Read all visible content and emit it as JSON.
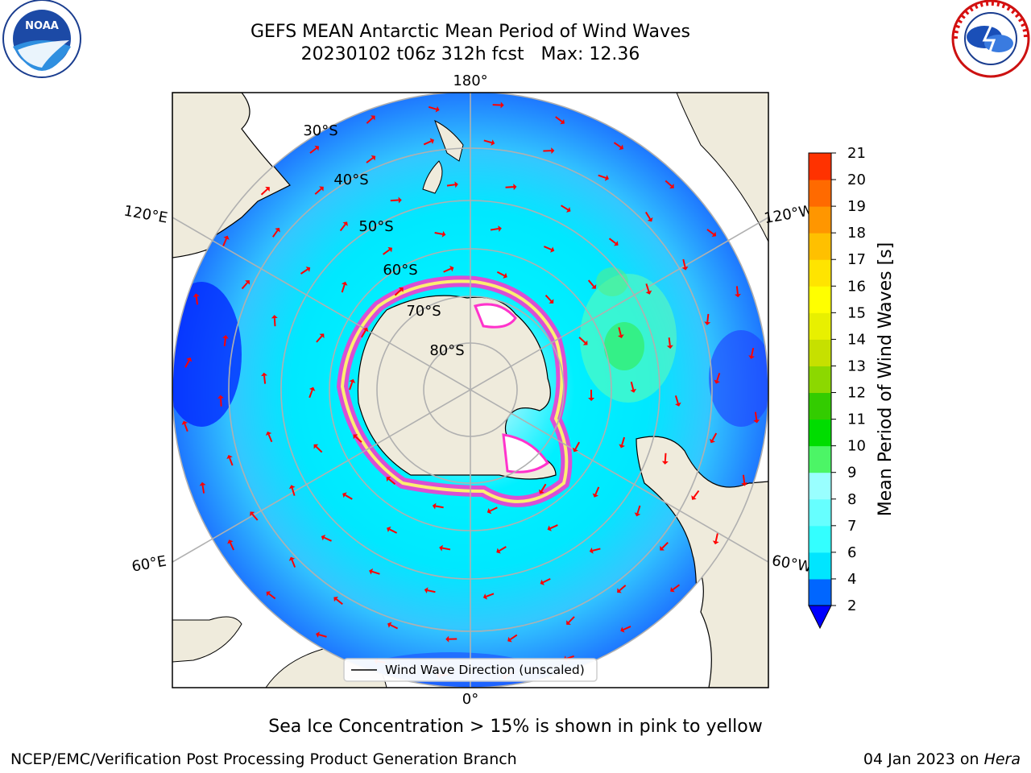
{
  "header": {
    "title_line1": "GEFS MEAN Antarctic Mean Period of Wind Waves",
    "title_line2": "20230102 t06z 312h fcst   Max: 12.36"
  },
  "logos": {
    "left": {
      "name": "noaa-logo",
      "text": "NOAA"
    },
    "right": {
      "name": "nws-logo"
    }
  },
  "map": {
    "meridian_labels": {
      "top": "180°",
      "bottom": "0°",
      "upper_left": "120°E",
      "upper_right": "120°W",
      "lower_left": "60°E",
      "lower_right": "60°W"
    },
    "parallel_labels": [
      "30°S",
      "40°S",
      "50°S",
      "60°S",
      "70°S",
      "80°S"
    ],
    "legend_label": "Wind Wave Direction (unscaled)",
    "arrow_color": "#ff0000"
  },
  "colorbar": {
    "label": "Mean Period of Wind Waves [s]",
    "ticks": [
      "2",
      "4",
      "6",
      "7",
      "8",
      "9",
      "10",
      "11",
      "12",
      "13",
      "14",
      "15",
      "16",
      "17",
      "18",
      "19",
      "20",
      "21"
    ],
    "colors": [
      "#0066ff",
      "#00e5ff",
      "#33ffff",
      "#66ffff",
      "#99ffff",
      "#4cf566",
      "#00dd00",
      "#33cc00",
      "#8cd800",
      "#c6e000",
      "#e8f000",
      "#ffff00",
      "#ffe400",
      "#ffc000",
      "#ff9600",
      "#ff6a00",
      "#ff3200",
      "#ff0000"
    ],
    "extend_color": "#0000ff"
  },
  "footer": {
    "note": "Sea Ice Concentration > 15% is shown in pink to yellow",
    "left": "NCEP/EMC/Verification Post Processing Product Generation Branch",
    "right_date": "04 Jan 2023 on",
    "right_host": "Hera"
  }
}
